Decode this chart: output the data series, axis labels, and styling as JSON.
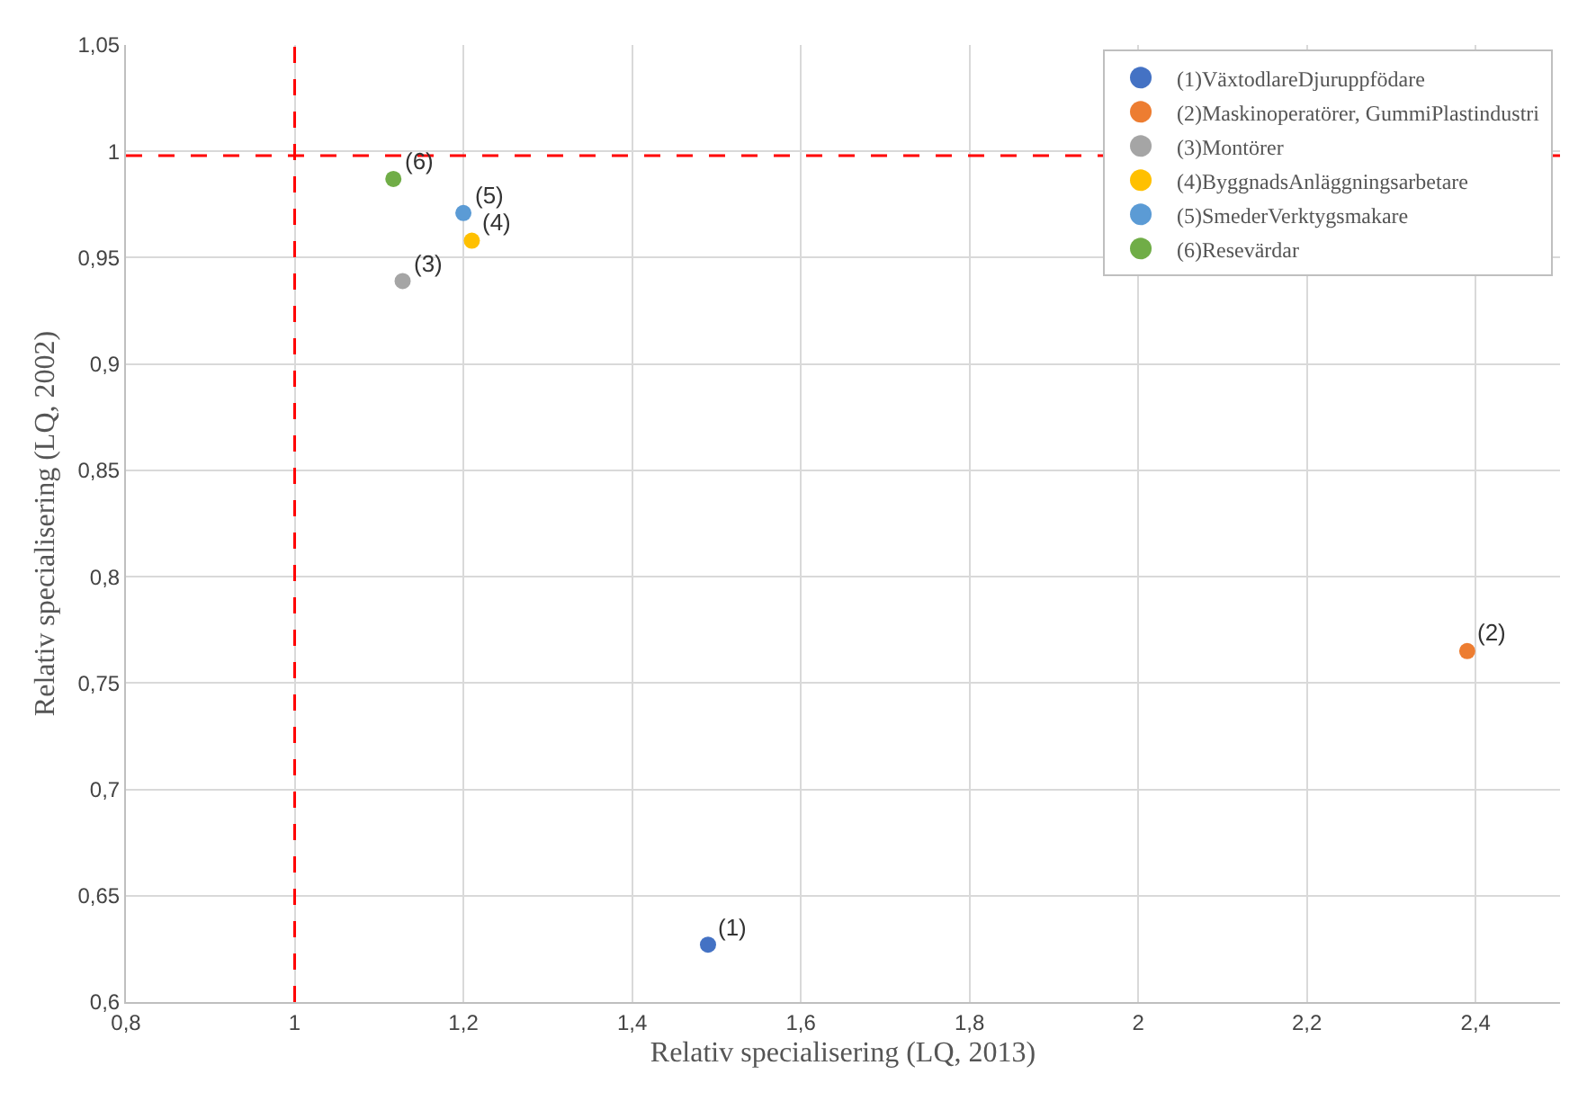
{
  "chart_data": {
    "type": "scatter",
    "xlabel": "Relativ specialisering (LQ, 2013)",
    "ylabel": "Relativ specialisering (LQ, 2002)",
    "series": [
      {
        "name": "(1)VäxtodlareDjuruppfödare",
        "color": "#4472c4",
        "x": [
          1.49
        ],
        "values": [
          0.627
        ]
      },
      {
        "name": "(2)Maskinoperatörer, GummiPlastindustri",
        "color": "#ed7d31",
        "x": [
          2.39
        ],
        "values": [
          0.765
        ]
      },
      {
        "name": "(3)Montörer",
        "color": "#a5a5a5",
        "x": [
          1.128
        ],
        "values": [
          0.939
        ]
      },
      {
        "name": "(4)ByggnadsAnläggningsarbetare",
        "color": "#ffc000",
        "x": [
          1.21
        ],
        "values": [
          0.958
        ]
      },
      {
        "name": "(5)SmederVerktygsmakare",
        "color": "#5b9bd5",
        "x": [
          1.2
        ],
        "values": [
          0.971
        ]
      },
      {
        "name": "(6)Resevärdar",
        "color": "#70ad47",
        "x": [
          1.117
        ],
        "values": [
          0.987
        ]
      }
    ],
    "annotations": [
      {
        "text": "(1)",
        "x": 1.49,
        "y": 0.627
      },
      {
        "text": "(2)",
        "x": 2.39,
        "y": 0.765
      },
      {
        "text": "(3)",
        "x": 1.128,
        "y": 0.939
      },
      {
        "text": "(4)",
        "x": 1.21,
        "y": 0.958
      },
      {
        "text": "(5)",
        "x": 1.2,
        "y": 0.971
      },
      {
        "text": "(6)",
        "x": 1.117,
        "y": 0.987
      }
    ],
    "ref_lines": [
      {
        "axis": "x",
        "value": 1,
        "color": "#ff0000",
        "line_style": "dashed"
      },
      {
        "axis": "y",
        "value": 0.998,
        "color": "#ff0000",
        "line_style": "dashed"
      }
    ],
    "xlim": [
      0.8,
      2.5
    ],
    "xticks": [
      {
        "value": 0.8,
        "label": "0,8"
      },
      1,
      {
        "value": 1.2,
        "label": "1,2"
      },
      {
        "value": 1.4,
        "label": "1,4"
      },
      {
        "value": 1.6,
        "label": "1,6"
      },
      {
        "value": 1.8,
        "label": "1,8"
      },
      2,
      {
        "value": 2.2,
        "label": "2,2"
      },
      {
        "value": 2.4,
        "label": "2,4"
      }
    ],
    "ylim": [
      0.6,
      1.05
    ],
    "yticks": [
      {
        "value": 0.6,
        "label": "0,6"
      },
      {
        "value": 0.65,
        "label": "0,65"
      },
      {
        "value": 0.7,
        "label": "0,7"
      },
      {
        "value": 0.75,
        "label": "0,75"
      },
      {
        "value": 0.8,
        "label": "0,8"
      },
      {
        "value": 0.85,
        "label": "0,85"
      },
      {
        "value": 0.9,
        "label": "0,9"
      },
      {
        "value": 0.95,
        "label": "0,95"
      },
      1,
      {
        "value": 1.05,
        "label": "1,05"
      }
    ],
    "grid": true,
    "legend": "top right",
    "marker": "circle"
  }
}
